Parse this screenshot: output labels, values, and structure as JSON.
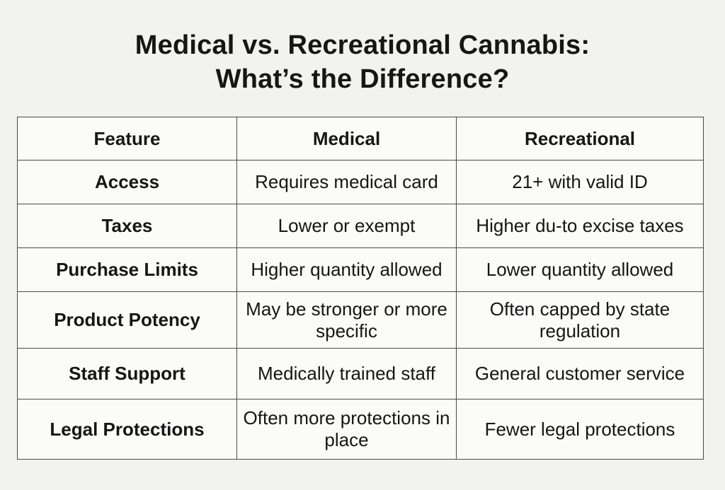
{
  "title": {
    "line1": "Medical vs. Recreational Cannabis:",
    "line2": "What’s the Difference?"
  },
  "table": {
    "headers": [
      "Feature",
      "Medical",
      "Recreational"
    ],
    "rows": [
      {
        "feature": "Access",
        "medical": "Requires medical card",
        "recreational": "21+ with valid ID"
      },
      {
        "feature": "Taxes",
        "medical": "Lower or exempt",
        "recreational": "Higher du-to excise taxes"
      },
      {
        "feature": "Purchase Limits",
        "medical": "Higher quantity allowed",
        "recreational": "Lower quantity allowed"
      },
      {
        "feature": "Product Potency",
        "medical": "May be stronger or more specific",
        "recreational": "Often capped by state regulation"
      },
      {
        "feature": "Staff Support",
        "medical": "Medically trained staff",
        "recreational": "General customer service"
      },
      {
        "feature": "Legal Protections",
        "medical": "Often more protections in place",
        "recreational": "Fewer legal protections"
      }
    ]
  }
}
